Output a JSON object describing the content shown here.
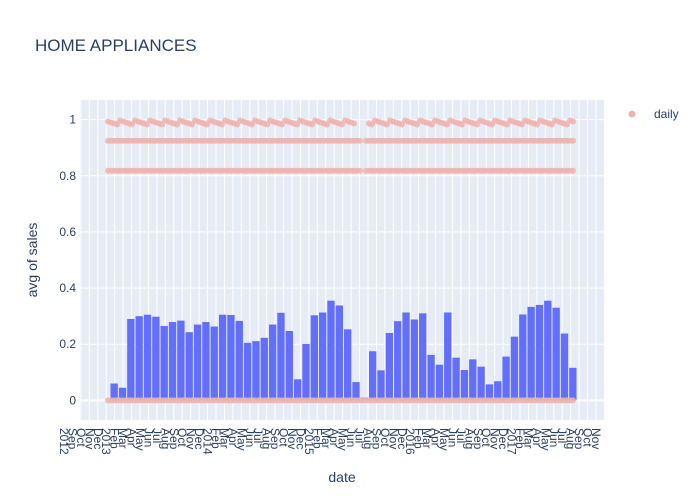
{
  "chart_data": {
    "type": "bar+scatter",
    "title": "HOME APPLIANCES",
    "xlabel": "date",
    "ylabel": "avg of sales",
    "ylim": [
      -0.07,
      1.07
    ],
    "y_ticks": [
      0,
      0.2,
      0.4,
      0.6,
      0.8,
      1
    ],
    "y_tick_labels": [
      "0",
      "0.2",
      "0.4",
      "0.6",
      "0.8",
      "1"
    ],
    "legend": {
      "position": "top-right",
      "entries": [
        "daily"
      ]
    },
    "grid": true,
    "colors": {
      "plot_bg": "#e5ecf6",
      "bar": "#636efa",
      "scatter": "#efb3ae",
      "grid": "#ffffff",
      "text": "#2a3f5f"
    },
    "x_tick_labels": [
      "2012",
      "Sep",
      "Oct",
      "Nov",
      "Dec",
      "2013",
      "Feb",
      "Mar",
      "Apr",
      "May",
      "Jun",
      "Jul",
      "Aug",
      "Sep",
      "Oct",
      "Nov",
      "Dec",
      "2014",
      "Feb",
      "Mar",
      "Apr",
      "May",
      "Jun",
      "Jul",
      "Aug",
      "Sep",
      "Oct",
      "Nov",
      "Dec",
      "2015",
      "Feb",
      "Mar",
      "Apr",
      "May",
      "Jun",
      "Jul",
      "Aug",
      "Sep",
      "Oct",
      "Nov",
      "Dec",
      "2016",
      "Feb",
      "Mar",
      "Apr",
      "May",
      "Jun",
      "Jul",
      "Aug",
      "Sep",
      "Oct",
      "Nov",
      "Dec",
      "2017",
      "Feb",
      "Mar",
      "Apr",
      "May",
      "Jun",
      "Jul",
      "Aug",
      "Sep",
      "Oct",
      "Nov"
    ],
    "bar_series": {
      "name": "",
      "values": [
        0.06,
        0.045,
        0.29,
        0.3,
        0.305,
        0.298,
        0.265,
        0.279,
        0.284,
        0.243,
        0.27,
        0.279,
        0.263,
        0.305,
        0.304,
        0.283,
        0.205,
        0.211,
        0.223,
        0.27,
        0.312,
        0.247,
        0.075,
        0.201,
        0.303,
        0.313,
        0.355,
        0.338,
        0.253,
        0.065,
        0.01,
        0.175,
        0.107,
        0.24,
        0.282,
        0.313,
        0.288,
        0.31,
        0.162,
        0.127,
        0.313,
        0.152,
        0.108,
        0.146,
        0.12,
        0.057,
        0.068,
        0.156,
        0.227,
        0.306,
        0.333,
        0.34,
        0.355,
        0.33,
        0.238,
        0.116
      ]
    },
    "scatter_series": {
      "name": "daily",
      "levels": [
        0,
        0.818,
        0.925,
        0.99
      ],
      "gap_note": ""
    }
  }
}
